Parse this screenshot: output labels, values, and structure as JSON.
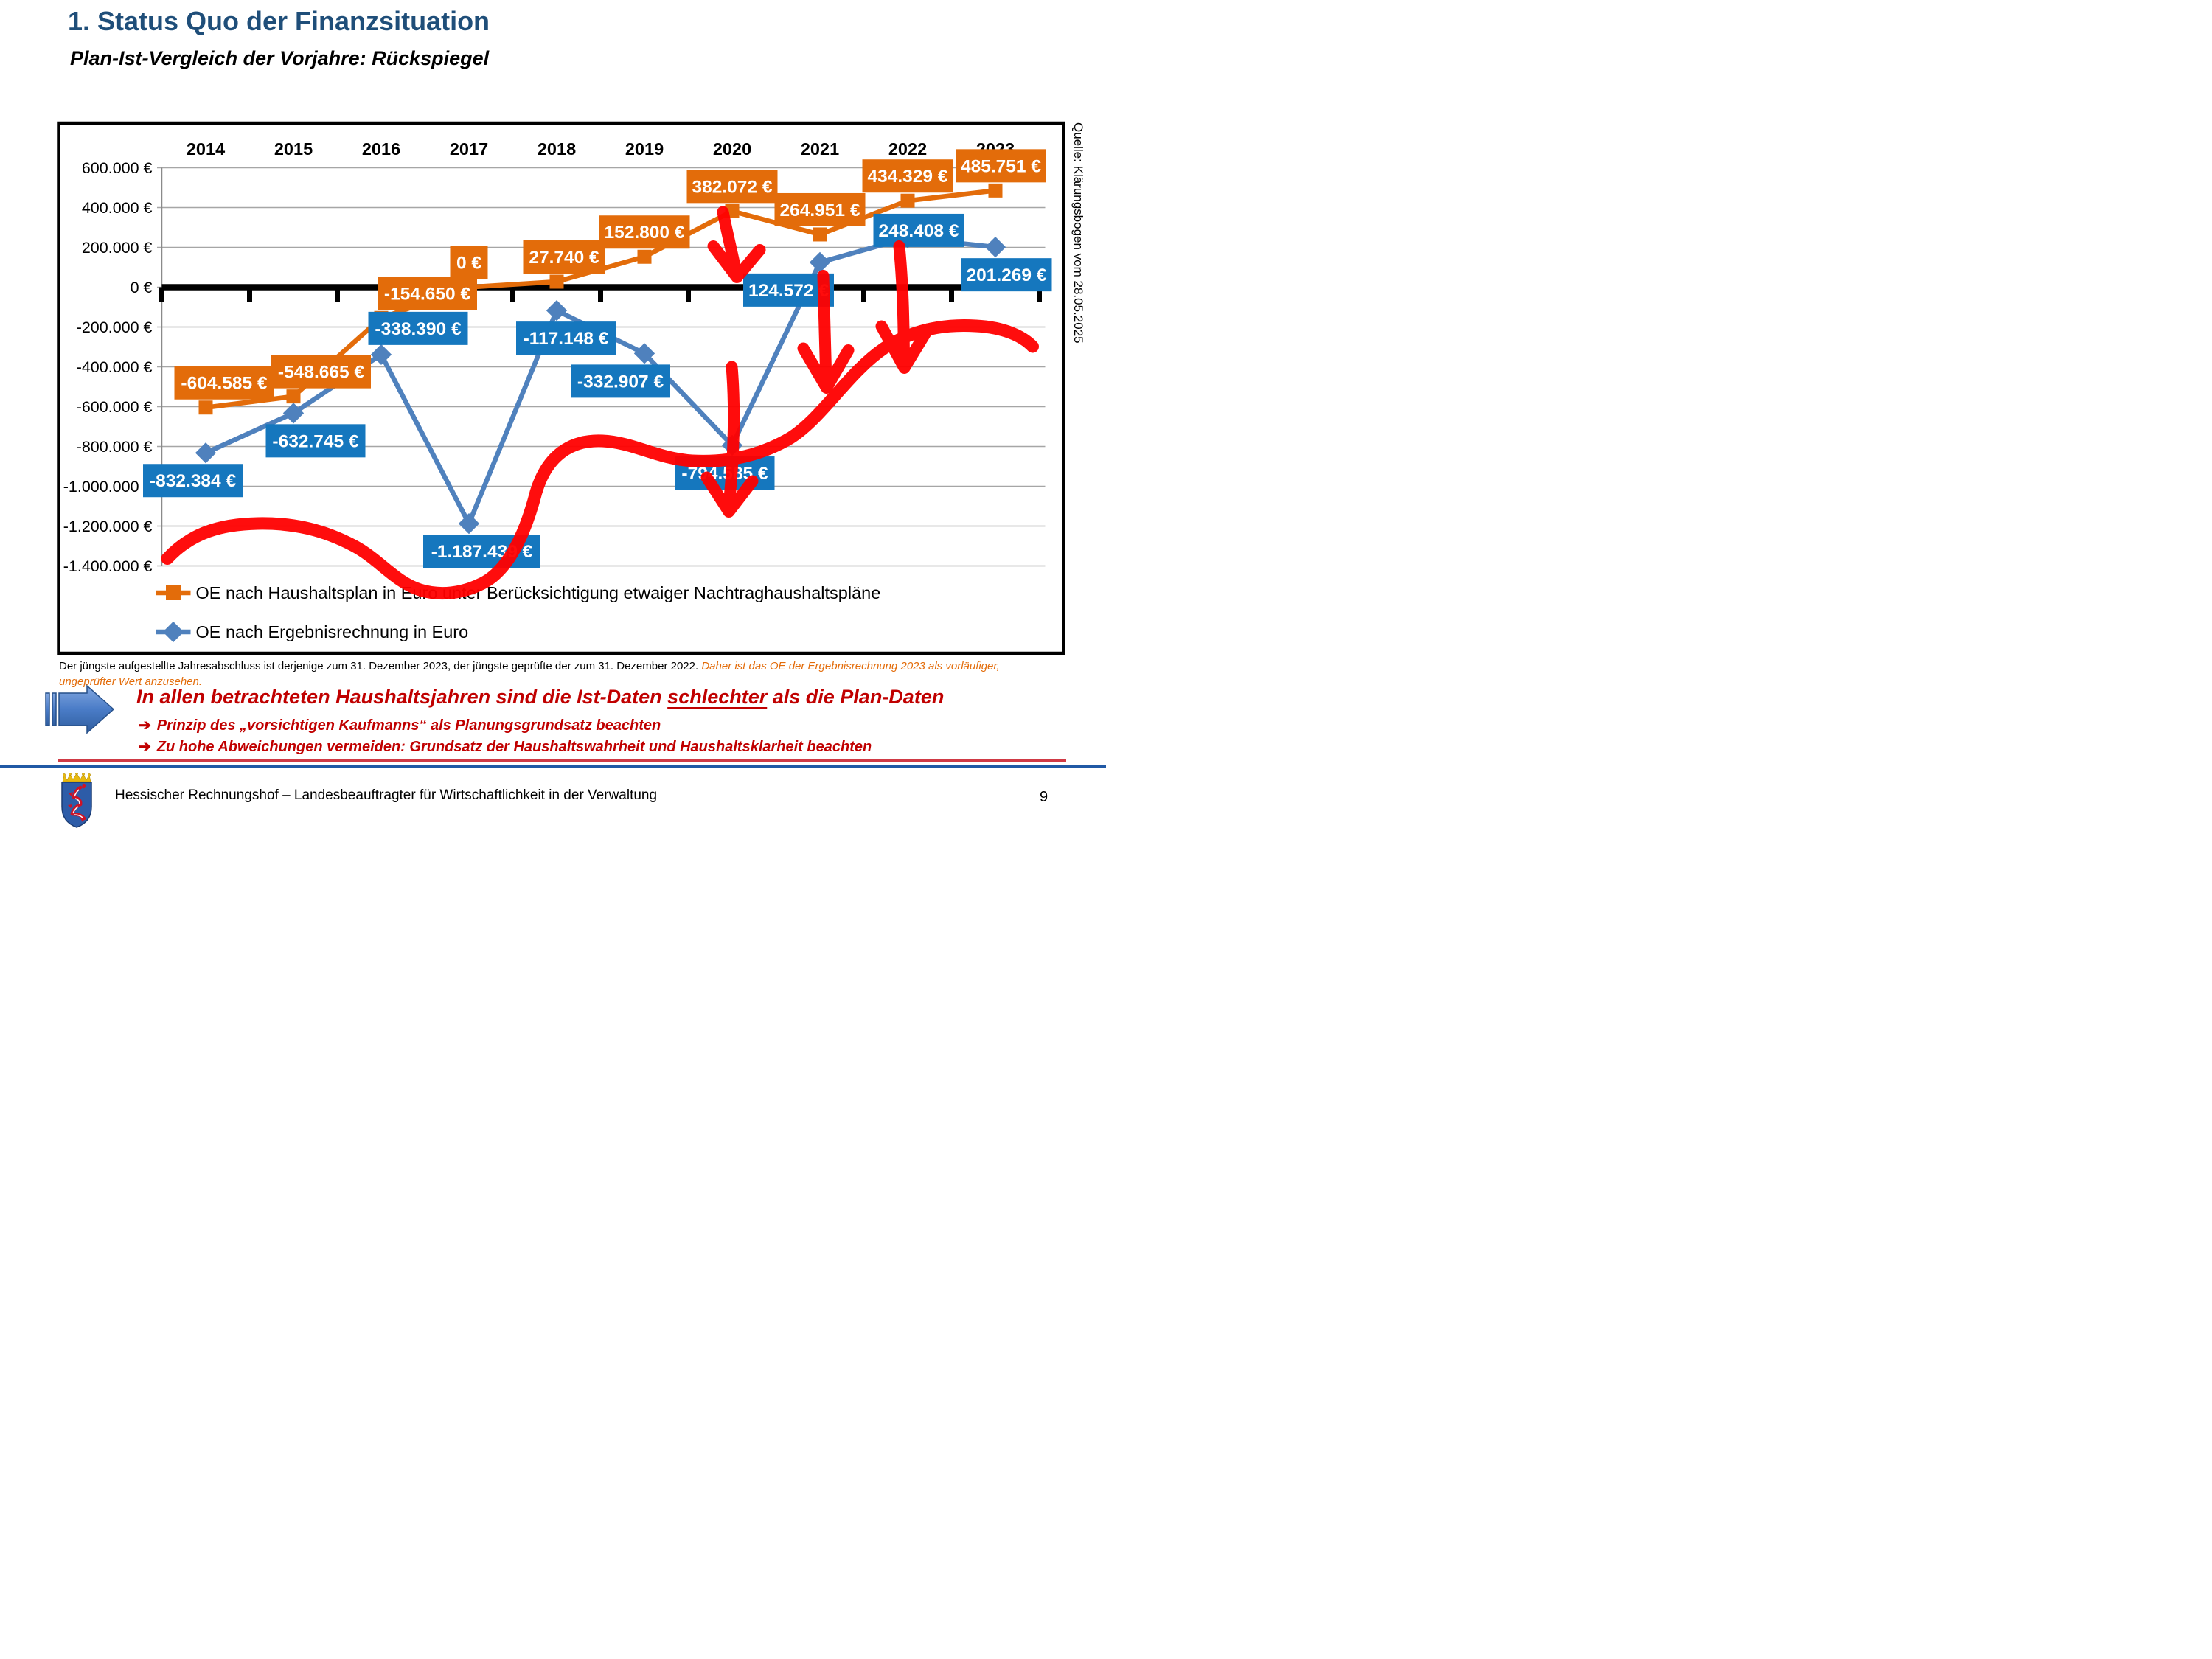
{
  "slide": {
    "title": "1. Status Quo der Finanzsituation",
    "subtitle": "Plan-Ist-Vergleich der Vorjahre: Rückspiegel",
    "source_note": "Quelle: Klärungsbogen vom 28.05.2025"
  },
  "footnote": {
    "black_part": "Der jüngste aufgestellte Jahresabschluss ist derjenige zum 31. Dezember 2023, der jüngste geprüfte der zum 31. Dezember 2022. ",
    "orange_part": "Daher ist das OE der Ergebnisrechnung 2023 als vorläufiger, ungeprüfter Wert anzusehen."
  },
  "callout": {
    "headline_pre": "In allen betrachteten Haushaltsjahren sind die Ist-Daten ",
    "headline_emph": "schlechter",
    "headline_post": " als die Plan-Daten",
    "bullet_glyph": "➔",
    "bullets": [
      "Prinzip des „vorsichtigen Kaufmanns“ als Planungsgrundsatz beachten",
      "Zu hohe Abweichungen vermeiden: Grundsatz der Haushaltswahrheit und Haushaltsklarheit beachten"
    ]
  },
  "footer": {
    "text": "Hessischer Rechnungshof – Landesbeauftragter für Wirtschaftlichkeit in der Verwaltung",
    "page": "9"
  },
  "chart_data": {
    "type": "line",
    "title": "",
    "xlabel": "",
    "ylabel": "",
    "categories": [
      "2014",
      "2015",
      "2016",
      "2017",
      "2018",
      "2019",
      "2020",
      "2021",
      "2022",
      "2023"
    ],
    "ylim": [
      -1400000,
      600000
    ],
    "grid": true,
    "legend_position": "bottom-left",
    "y_ticks": [
      "600.000 €",
      "400.000 €",
      "200.000 €",
      "0 €",
      "-200.000 €",
      "-400.000 €",
      "-600.000 €",
      "-800.000 €",
      "-1.000.000 €",
      "-1.200.000 €",
      "-1.400.000 €"
    ],
    "series": [
      {
        "name": "OE nach Haushaltsplan in Euro unter Berücksichtigung etwaiger Nachtraghaushaltspläne",
        "marker": "square",
        "color": "#e36c0a",
        "label_bg": "#e36c0a",
        "values": [
          -604585,
          -548665,
          -154650,
          0,
          27740,
          152800,
          382072,
          264951,
          434329,
          485751
        ],
        "labels": [
          "-604.585 €",
          "-548.665 €",
          "-154.650 €",
          "0 €",
          "27.740 €",
          "152.800 €",
          "382.072 €",
          "264.951 €",
          "434.329 €",
          "485.751 €"
        ]
      },
      {
        "name": "OE nach Ergebnisrechnung in Euro",
        "marker": "diamond",
        "color": "#4f81bd",
        "label_bg": "#1577be",
        "values": [
          -832384,
          -632745,
          -338390,
          -1187439,
          -117148,
          -332907,
          -794585,
          124572,
          248408,
          201269
        ],
        "labels": [
          "-832.384 €",
          "-632.745 €",
          "-338.390 €",
          "-1.187.439 €",
          "-117.148 €",
          "-332.907 €",
          "-794.585 €",
          "124.572 €",
          "248.408 €",
          "201.269 €"
        ]
      }
    ],
    "annotation_color": "#ff0000"
  }
}
